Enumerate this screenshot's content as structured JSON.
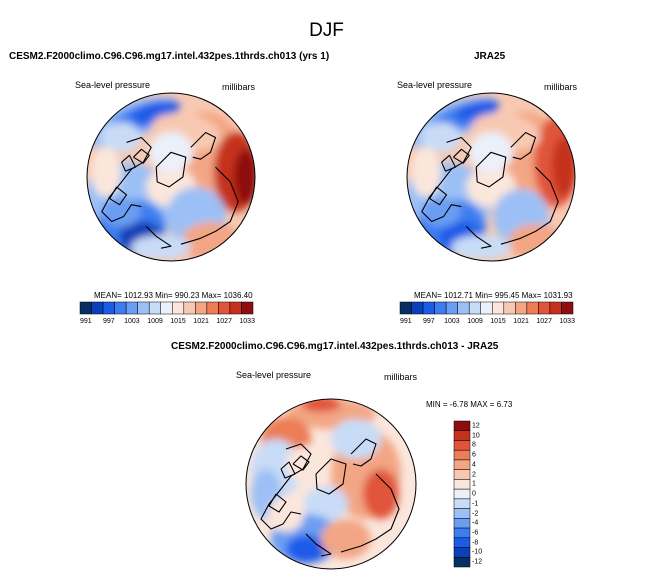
{
  "figure": {
    "title": "DJF"
  },
  "colors": {
    "base": [
      "#053061",
      "#0a41b8",
      "#1a5ce8",
      "#3d7df0",
      "#6a9ef2",
      "#9cc0f5",
      "#c8dcf7",
      "#eaf1fb",
      "#fbe6dc",
      "#f8c9b2",
      "#f3a684",
      "#ec7d57",
      "#e0553a",
      "#c4321f",
      "#8f0c10"
    ],
    "diff": [
      "#053061",
      "#0a41b8",
      "#1a5ce8",
      "#3d7df0",
      "#6a9ef2",
      "#9cc0f5",
      "#c8dcf7",
      "#eaf1fb",
      "#fbe6dc",
      "#f8c9b2",
      "#f3a684",
      "#ec7d57",
      "#e0553a",
      "#c4321f",
      "#8f0c10"
    ]
  },
  "panels": {
    "model": {
      "title": "CESM2.F2000climo.C96.C96.mg17.intel.432pes.1thrds.ch013 (yrs 1)",
      "variable": "Sea-level pressure",
      "units": "millibars",
      "stats": "MEAN= 1012.93  Min= 990.23  Max= 1036.40"
    },
    "obs": {
      "title": "JRA25",
      "variable": "Sea-level pressure",
      "units": "millibars",
      "stats": "MEAN= 1012.71  Min= 995.45  Max= 1031.93"
    },
    "diff": {
      "title": "CESM2.F2000climo.C96.C96.mg17.intel.432pes.1thrds.ch013 - JRA25",
      "variable": "Sea-level pressure",
      "units": "millibars",
      "stats": "MIN =  -6.78 MAX =   6.73"
    }
  },
  "chart_data": [
    {
      "type": "heatmap",
      "projection": "north-polar-stereographic",
      "title": "CESM2.F2000climo.C96.C96.mg17.intel.432pes.1thrds.ch013 (yrs 1)",
      "variable": "Sea-level pressure",
      "units": "millibars",
      "mean": 1012.93,
      "min": 990.23,
      "max": 1036.4,
      "colorbar_levels": [
        991,
        994,
        997,
        1000,
        1003,
        1006,
        1009,
        1012,
        1015,
        1018,
        1021,
        1024,
        1027,
        1030,
        1033
      ],
      "colorbar_tick_labels": [
        "991",
        "997",
        "1003",
        "1009",
        "1015",
        "1021",
        "1027",
        "1033"
      ],
      "colorbar_orientation": "horizontal"
    },
    {
      "type": "heatmap",
      "projection": "north-polar-stereographic",
      "title": "JRA25",
      "variable": "Sea-level pressure",
      "units": "millibars",
      "mean": 1012.71,
      "min": 995.45,
      "max": 1031.93,
      "colorbar_levels": [
        991,
        994,
        997,
        1000,
        1003,
        1006,
        1009,
        1012,
        1015,
        1018,
        1021,
        1024,
        1027,
        1030,
        1033
      ],
      "colorbar_tick_labels": [
        "991",
        "997",
        "1003",
        "1009",
        "1015",
        "1021",
        "1027",
        "1033"
      ],
      "colorbar_orientation": "horizontal"
    },
    {
      "type": "heatmap",
      "projection": "north-polar-stereographic",
      "title": "CESM2.F2000climo.C96.C96.mg17.intel.432pes.1thrds.ch013 - JRA25",
      "variable": "Sea-level pressure",
      "units": "millibars",
      "min": -6.78,
      "max": 6.73,
      "colorbar_tick_labels": [
        "12",
        "10",
        "8",
        "6",
        "4",
        "2",
        "1",
        "0",
        "-1",
        "-2",
        "-4",
        "-6",
        "-8",
        "-10",
        "-12"
      ],
      "colorbar_orientation": "vertical"
    }
  ]
}
